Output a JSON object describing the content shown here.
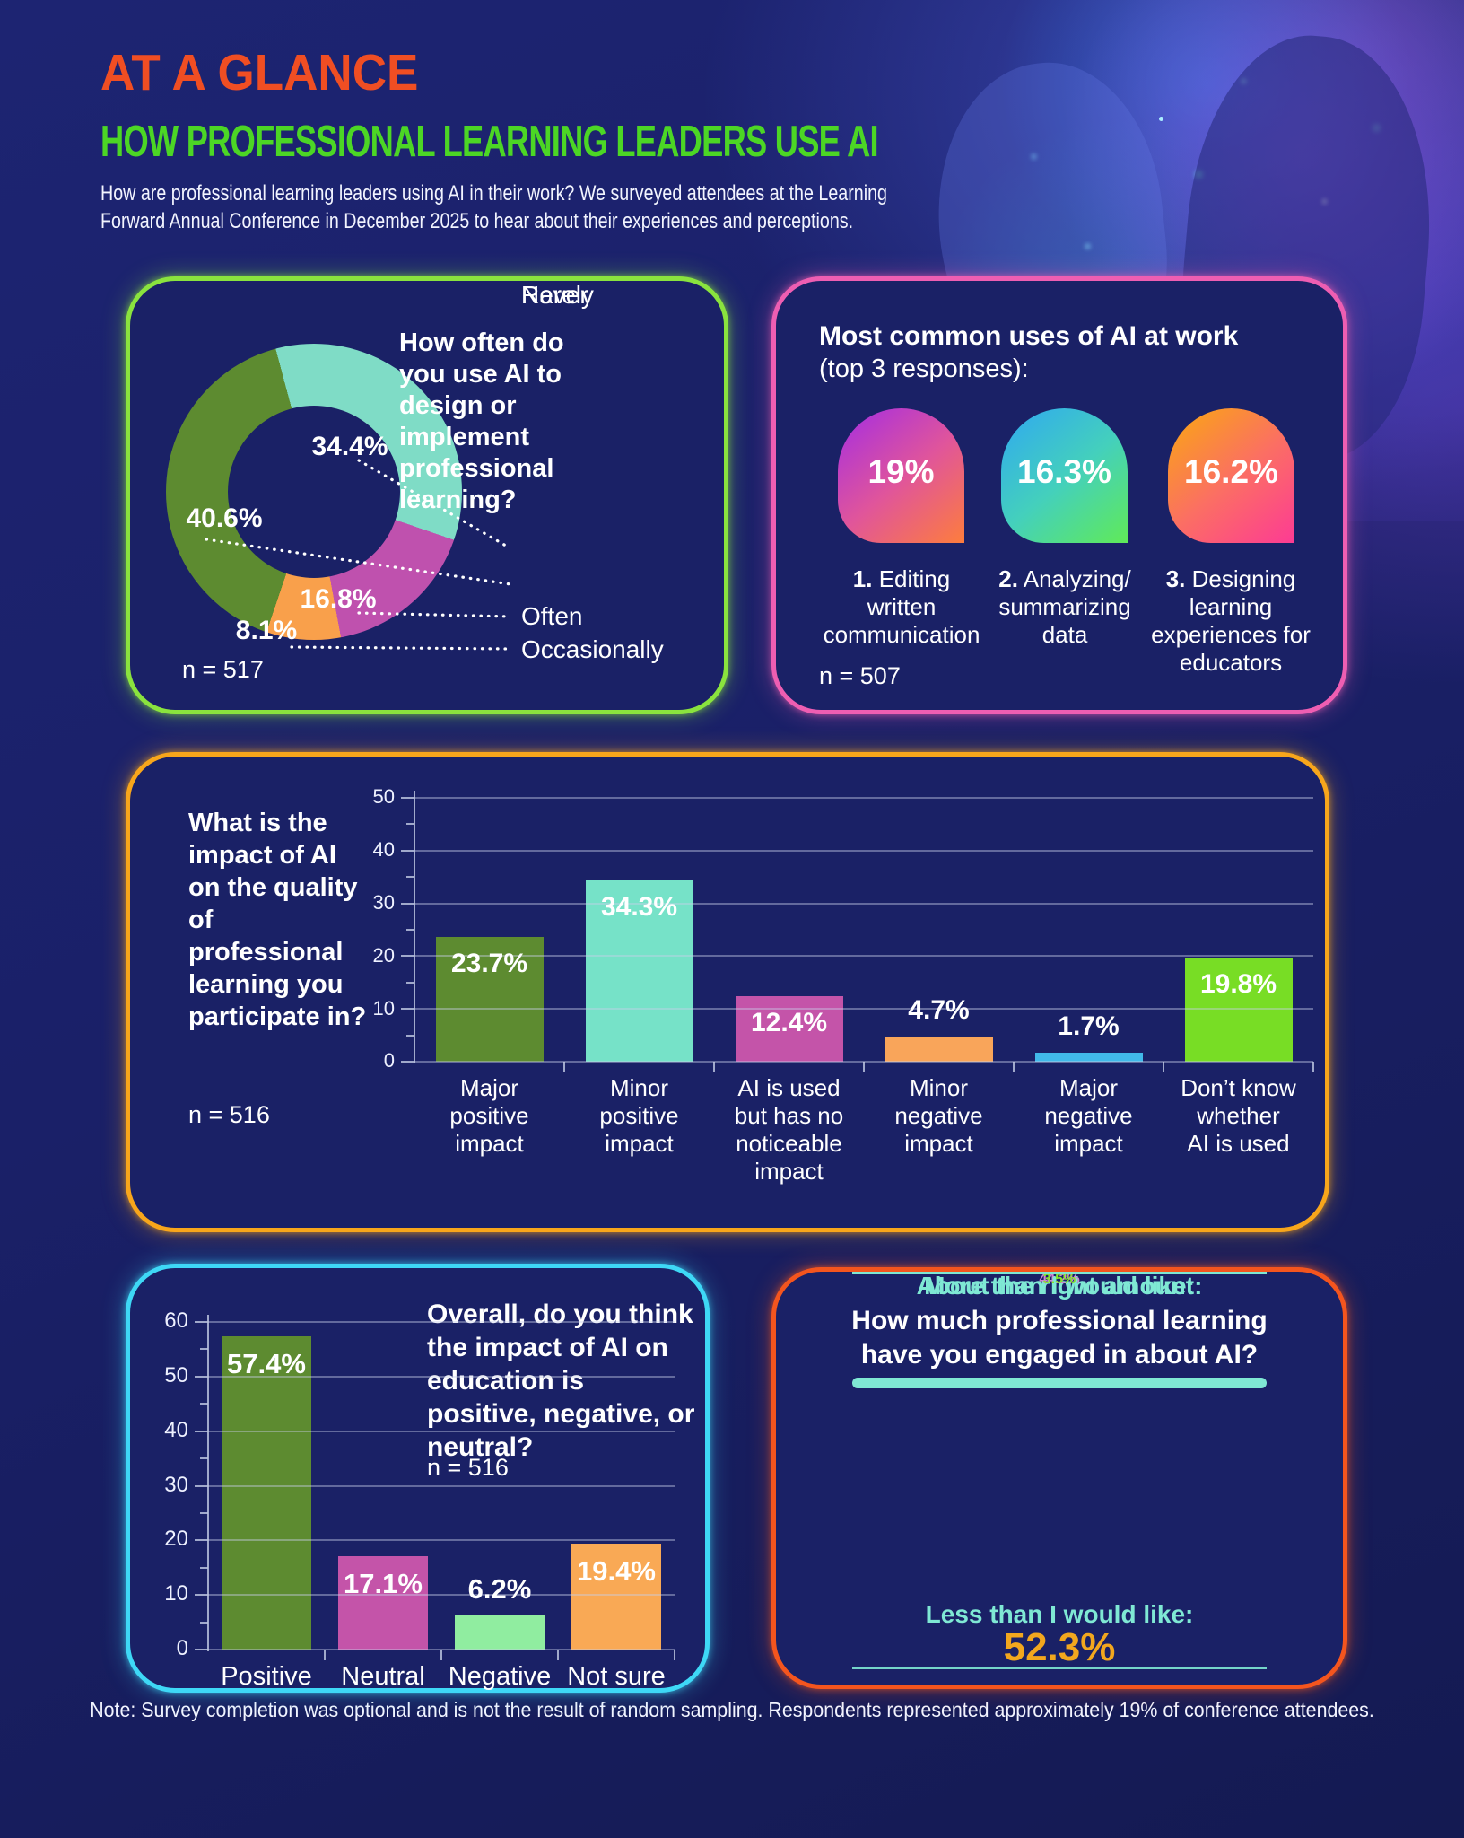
{
  "header": {
    "kicker": "AT A GLANCE",
    "title": "HOW PROFESSIONAL LEARNING LEADERS USE AI",
    "intro_line1": "How are professional learning leaders using AI in their work? We surveyed attendees at the Learning",
    "intro_line2": "Forward Annual Conference in December 2025 to hear about their experiences and perceptions.",
    "colors": {
      "kicker": "#f04e23",
      "title": "#4cd625"
    }
  },
  "panels": {
    "frequency": {
      "question": "How often do you use AI to design or implement professional learning?",
      "sample": "n = 517",
      "border_color": "#8ae33e",
      "legend": [
        "Often",
        "Occasionally",
        "Rarely",
        "Never"
      ]
    },
    "uses": {
      "title": "Most common uses of AI at work",
      "subtitle": "(top 3 responses):",
      "sample": "n = 507",
      "border_color": "#ee5eb2",
      "items": [
        {
          "num": "1.",
          "value": "19%",
          "label": "Editing written\ncommunication",
          "gradient": [
            "#a32ce4",
            "#e0559b",
            "#fd7d3d"
          ]
        },
        {
          "num": "2.",
          "value": "16.3%",
          "label": "Analyzing/\nsummarizing\ndata",
          "gradient": [
            "#2fa8f2",
            "#44d0bc",
            "#60ea58"
          ]
        },
        {
          "num": "3.",
          "value": "16.2%",
          "label": "Designing\nlearning\nexperiences for\neducators",
          "gradient": [
            "#f9a90f",
            "#fb6f63",
            "#fd3b94"
          ]
        }
      ]
    },
    "impact": {
      "question": "What is the impact of AI on the quality of professional learning you participate in?",
      "sample": "n = 516",
      "border_color": "#f8a61b"
    },
    "overall": {
      "question": "Overall, do you think the impact of AI on education is positive, negative, or neutral?",
      "sample": "n = 516",
      "border_color": "#3ed8f6"
    },
    "engagement": {
      "title_line1": "How much professional learning",
      "title_line2": "have you engaged in about AI?",
      "border_color": "#f4551e",
      "stats": [
        {
          "label": "Less than I would like:",
          "value": "52.3%",
          "color": "#f2a71e"
        },
        {
          "label": "About the right amount:",
          "value": "44.2%",
          "color": "#cd86d4"
        },
        {
          "label": "More than I would like:",
          "value": "3.5%",
          "color": "#86e62c"
        }
      ]
    }
  },
  "note": "Note: Survey completion was optional and is not the result of random sampling. Respondents represented approximately 19% of conference attendees.",
  "chart_data": [
    {
      "id": "frequency-donut",
      "type": "pie",
      "donut": true,
      "title": "How often do you use AI to design or implement professional learning?",
      "sample_size": 517,
      "start_angle_deg": -15,
      "legend_order": [
        "Often",
        "Occasionally",
        "Rarely",
        "Never"
      ],
      "segments": [
        {
          "label": "Often",
          "value": 34.4,
          "color": "#7fdcc6"
        },
        {
          "label": "Rarely",
          "value": 16.8,
          "color": "#bf51ae"
        },
        {
          "label": "Never",
          "value": 8.1,
          "color": "#f9a04b"
        },
        {
          "label": "Occasionally",
          "value": 40.6,
          "color": "#5d8b30"
        }
      ]
    },
    {
      "id": "uses-top3",
      "type": "bar",
      "title": "Most common uses of AI at work (top 3 responses)",
      "sample_size": 507,
      "categories": [
        "Editing written communication",
        "Analyzing/summarizing data",
        "Designing learning experiences for educators"
      ],
      "values": [
        19,
        16.3,
        16.2
      ],
      "value_labels": [
        "19%",
        "16.3%",
        "16.2%"
      ]
    },
    {
      "id": "impact-quality",
      "type": "bar",
      "title": "What is the impact of AI on the quality of professional learning you participate in?",
      "sample_size": 516,
      "categories": [
        "Major\npositive\nimpact",
        "Minor\npositive\nimpact",
        "AI is used\nbut has no\nnoticeable\nimpact",
        "Minor\nnegative\nimpact",
        "Major\nnegative\nimpact",
        "Don’t know\nwhether\nAI is used"
      ],
      "values": [
        23.7,
        34.3,
        12.4,
        4.7,
        1.7,
        19.8
      ],
      "value_labels": [
        "23.7%",
        "34.3%",
        "12.4%",
        "4.7%",
        "1.7%",
        "19.8%"
      ],
      "colors": [
        "#5d8b30",
        "#76e2c8",
        "#c454a9",
        "#f9a55a",
        "#41b9e9",
        "#78dd25"
      ],
      "ylim": [
        0,
        50
      ],
      "ytick_step": 10,
      "grid": true
    },
    {
      "id": "overall-impact",
      "type": "bar",
      "title": "Overall, do you think the impact of AI on education is positive, negative, or neutral?",
      "sample_size": 516,
      "categories": [
        "Positive",
        "Neutral",
        "Negative",
        "Not sure"
      ],
      "values": [
        57.4,
        17.1,
        6.2,
        19.4
      ],
      "value_labels": [
        "57.4%",
        "17.1%",
        "6.2%",
        "19.4%"
      ],
      "colors": [
        "#5d8b30",
        "#c454a9",
        "#90eda0",
        "#f9a955"
      ],
      "ylim": [
        0,
        60
      ],
      "ytick_step": 10,
      "grid": true
    },
    {
      "id": "engagement",
      "type": "table",
      "title": "How much professional learning have you engaged in about AI?",
      "rows": [
        [
          "Less than I would like:",
          52.3
        ],
        [
          "About the right amount:",
          44.2
        ],
        [
          "More than I would like:",
          3.5
        ]
      ]
    }
  ]
}
